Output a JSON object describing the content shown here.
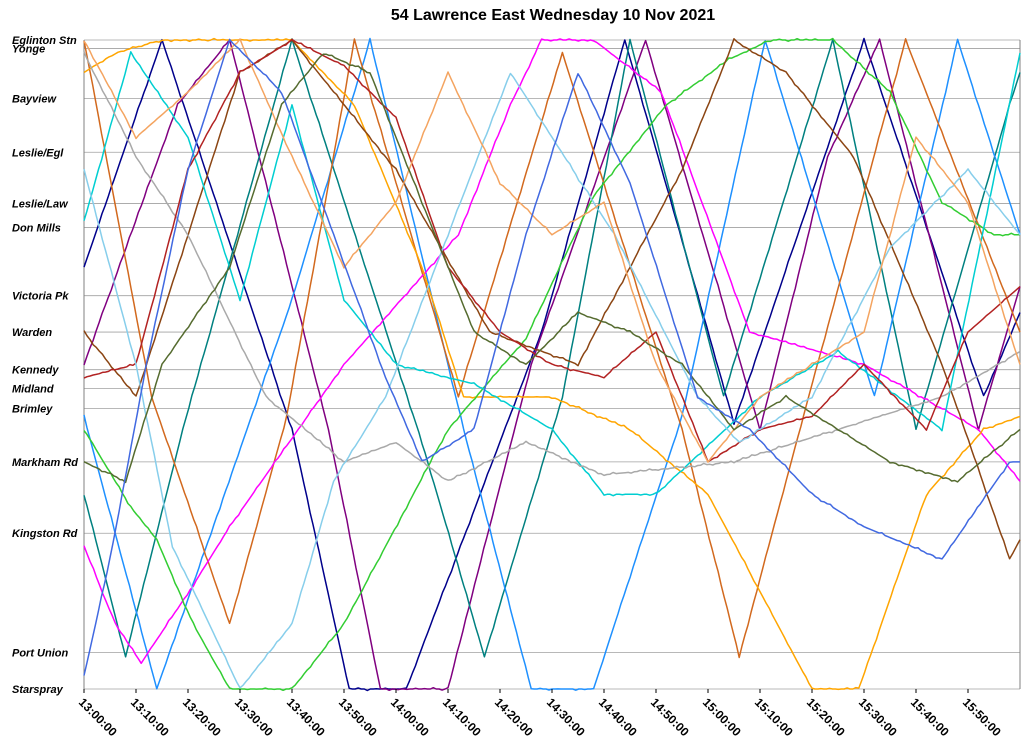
{
  "chart_data": {
    "type": "line",
    "title": "54 Lawrence East Wednesday 10 Nov 2021",
    "xlabel": "",
    "ylabel": "",
    "x_range": [
      "13:00:00",
      "16:00:00"
    ],
    "x_ticks": [
      "13:00:00",
      "13:10:00",
      "13:20:00",
      "13:30:00",
      "13:40:00",
      "13:50:00",
      "14:00:00",
      "14:10:00",
      "14:20:00",
      "14:30:00",
      "14:40:00",
      "14:50:00",
      "15:00:00",
      "15:10:00",
      "15:20:00",
      "15:30:00",
      "15:40:00",
      "15:50:00"
    ],
    "stops": [
      {
        "name": "Eglinton Stn",
        "pos": 0.0
      },
      {
        "name": "Yonge",
        "pos": 0.013
      },
      {
        "name": "Bayview",
        "pos": 0.09
      },
      {
        "name": "Leslie/Egl",
        "pos": 0.173
      },
      {
        "name": "Leslie/Law",
        "pos": 0.252
      },
      {
        "name": "Don Mills",
        "pos": 0.289
      },
      {
        "name": "Victoria Pk",
        "pos": 0.394
      },
      {
        "name": "Warden",
        "pos": 0.45
      },
      {
        "name": "Kennedy",
        "pos": 0.508
      },
      {
        "name": "Midland",
        "pos": 0.537
      },
      {
        "name": "Brimley",
        "pos": 0.568
      },
      {
        "name": "Markham Rd",
        "pos": 0.65
      },
      {
        "name": "Kingston Rd",
        "pos": 0.76
      },
      {
        "name": "Port Union",
        "pos": 0.944
      },
      {
        "name": "Starspray",
        "pos": 1.0
      }
    ],
    "series": [
      {
        "color": "#00008b",
        "points": [
          [
            "13:00:00",
            0.35
          ],
          [
            "13:15:00",
            0.0
          ],
          [
            "13:40:00",
            0.6
          ],
          [
            "13:51:00",
            1.0
          ],
          [
            "14:02:00",
            1.0
          ],
          [
            "14:28:00",
            0.45
          ],
          [
            "14:44:00",
            0.0
          ],
          [
            "15:05:00",
            0.59
          ],
          [
            "15:16:00",
            0.33
          ],
          [
            "15:30:00",
            0.0
          ],
          [
            "15:53:00",
            0.55
          ],
          [
            "16:00:00",
            0.42
          ]
        ]
      },
      {
        "color": "#800080",
        "points": [
          [
            "13:00:00",
            0.5
          ],
          [
            "13:18:00",
            0.1
          ],
          [
            "13:28:00",
            0.0
          ],
          [
            "13:47:00",
            0.6
          ],
          [
            "13:57:00",
            1.0
          ],
          [
            "14:10:00",
            1.0
          ],
          [
            "14:26:00",
            0.5
          ],
          [
            "14:48:00",
            0.0
          ],
          [
            "15:10:00",
            0.6
          ],
          [
            "15:23:00",
            0.18
          ],
          [
            "15:33:00",
            0.0
          ],
          [
            "15:52:00",
            0.6
          ],
          [
            "16:00:00",
            0.38
          ]
        ]
      },
      {
        "color": "#008080",
        "points": [
          [
            "13:00:00",
            0.7
          ],
          [
            "13:08:00",
            0.95
          ],
          [
            "13:19:00",
            0.6
          ],
          [
            "13:40:00",
            0.0
          ],
          [
            "14:05:00",
            0.62
          ],
          [
            "14:17:00",
            0.95
          ],
          [
            "14:32:00",
            0.55
          ],
          [
            "14:45:00",
            0.0
          ],
          [
            "15:03:00",
            0.55
          ],
          [
            "15:24:00",
            0.0
          ],
          [
            "15:40:00",
            0.6
          ],
          [
            "15:58:00",
            0.1
          ],
          [
            "16:00:00",
            0.05
          ]
        ]
      },
      {
        "color": "#1e90ff",
        "points": [
          [
            "13:00:00",
            0.58
          ],
          [
            "13:14:00",
            1.0
          ],
          [
            "13:40:00",
            0.4
          ],
          [
            "13:55:00",
            0.0
          ],
          [
            "14:13:00",
            0.6
          ],
          [
            "14:26:00",
            1.0
          ],
          [
            "14:38:00",
            1.0
          ],
          [
            "14:55:00",
            0.58
          ],
          [
            "15:11:00",
            0.0
          ],
          [
            "15:32:00",
            0.55
          ],
          [
            "15:48:00",
            0.0
          ],
          [
            "16:00:00",
            0.3
          ]
        ]
      },
      {
        "color": "#d2691e",
        "points": [
          [
            "13:00:00",
            0.0
          ],
          [
            "13:13:00",
            0.55
          ],
          [
            "13:28:00",
            0.9
          ],
          [
            "13:39:00",
            0.58
          ],
          [
            "13:52:00",
            0.0
          ],
          [
            "14:12:00",
            0.55
          ],
          [
            "14:32:00",
            0.02
          ],
          [
            "14:55:00",
            0.6
          ],
          [
            "15:06:00",
            0.95
          ],
          [
            "15:19:00",
            0.56
          ],
          [
            "15:38:00",
            0.0
          ],
          [
            "16:00:00",
            0.45
          ]
        ]
      },
      {
        "color": "#ff00ff",
        "points": [
          [
            "13:00:00",
            0.78
          ],
          [
            "13:06:00",
            0.9
          ],
          [
            "13:11:00",
            0.96
          ],
          [
            "13:21:00",
            0.84
          ],
          [
            "13:28:00",
            0.75
          ],
          [
            "13:50:00",
            0.5
          ],
          [
            "14:12:00",
            0.3
          ],
          [
            "14:22:00",
            0.1
          ],
          [
            "14:28:00",
            0.0
          ],
          [
            "14:38:00",
            0.0
          ],
          [
            "14:51:00",
            0.08
          ],
          [
            "15:08:00",
            0.45
          ],
          [
            "15:30:00",
            0.5
          ],
          [
            "15:52:00",
            0.6
          ],
          [
            "16:00:00",
            0.68
          ]
        ]
      },
      {
        "color": "#ffa500",
        "points": [
          [
            "13:00:00",
            0.05
          ],
          [
            "13:06:00",
            0.02
          ],
          [
            "13:15:00",
            0.0
          ],
          [
            "13:25:00",
            0.0
          ],
          [
            "13:40:00",
            0.0
          ],
          [
            "13:52:00",
            0.1
          ],
          [
            "14:05:00",
            0.35
          ],
          [
            "14:13:00",
            0.55
          ],
          [
            "14:30:00",
            0.55
          ],
          [
            "14:45:00",
            0.6
          ],
          [
            "15:00:00",
            0.7
          ],
          [
            "15:10:00",
            0.85
          ],
          [
            "15:20:00",
            1.0
          ],
          [
            "15:29:00",
            1.0
          ],
          [
            "15:42:00",
            0.7
          ],
          [
            "15:53:00",
            0.6
          ],
          [
            "16:00:00",
            0.58
          ]
        ]
      },
      {
        "color": "#32cd32",
        "points": [
          [
            "13:00:00",
            0.6
          ],
          [
            "13:09:00",
            0.72
          ],
          [
            "13:14:00",
            0.77
          ],
          [
            "13:21:00",
            0.9
          ],
          [
            "13:28:00",
            1.0
          ],
          [
            "13:40:00",
            1.0
          ],
          [
            "13:50:00",
            0.9
          ],
          [
            "14:10:00",
            0.6
          ],
          [
            "14:25:00",
            0.46
          ],
          [
            "14:38:00",
            0.24
          ],
          [
            "14:52:00",
            0.1
          ],
          [
            "15:04:00",
            0.03
          ],
          [
            "15:12:00",
            0.0
          ],
          [
            "15:24:00",
            0.0
          ],
          [
            "15:35:00",
            0.08
          ],
          [
            "15:45:00",
            0.25
          ],
          [
            "15:55:00",
            0.3
          ],
          [
            "16:00:00",
            0.3
          ]
        ]
      },
      {
        "color": "#8b4513",
        "points": [
          [
            "13:00:00",
            0.45
          ],
          [
            "13:10:00",
            0.55
          ],
          [
            "13:20:00",
            0.3
          ],
          [
            "13:30:00",
            0.05
          ],
          [
            "13:40:00",
            0.0
          ],
          [
            "14:00:00",
            0.2
          ],
          [
            "14:18:00",
            0.45
          ],
          [
            "14:35:00",
            0.5
          ],
          [
            "14:55:00",
            0.2
          ],
          [
            "15:05:00",
            0.0
          ],
          [
            "15:15:00",
            0.05
          ],
          [
            "15:28:00",
            0.18
          ],
          [
            "15:45:00",
            0.5
          ],
          [
            "15:58:00",
            0.8
          ],
          [
            "16:00:00",
            0.77
          ]
        ]
      },
      {
        "color": "#00ced1",
        "points": [
          [
            "13:00:00",
            0.28
          ],
          [
            "13:09:00",
            0.02
          ],
          [
            "13:20:00",
            0.15
          ],
          [
            "13:30:00",
            0.4
          ],
          [
            "13:40:00",
            0.1
          ],
          [
            "13:50:00",
            0.4
          ],
          [
            "14:00:00",
            0.5
          ],
          [
            "14:15:00",
            0.53
          ],
          [
            "14:30:00",
            0.6
          ],
          [
            "14:40:00",
            0.7
          ],
          [
            "14:50:00",
            0.7
          ],
          [
            "15:10:00",
            0.55
          ],
          [
            "15:25:00",
            0.48
          ],
          [
            "15:45:00",
            0.6
          ],
          [
            "16:00:00",
            0.02
          ]
        ]
      },
      {
        "color": "#a9a9a9",
        "points": [
          [
            "13:00:00",
            0.02
          ],
          [
            "13:10:00",
            0.18
          ],
          [
            "13:20:00",
            0.3
          ],
          [
            "13:35:00",
            0.55
          ],
          [
            "13:50:00",
            0.65
          ],
          [
            "14:00:00",
            0.62
          ],
          [
            "14:10:00",
            0.68
          ],
          [
            "14:25:00",
            0.62
          ],
          [
            "14:40:00",
            0.67
          ],
          [
            "15:05:00",
            0.65
          ],
          [
            "15:25:00",
            0.6
          ],
          [
            "15:45:00",
            0.55
          ],
          [
            "16:00:00",
            0.48
          ]
        ]
      },
      {
        "color": "#b22222",
        "points": [
          [
            "13:00:00",
            0.52
          ],
          [
            "13:10:00",
            0.5
          ],
          [
            "13:20:00",
            0.2
          ],
          [
            "13:30:00",
            0.05
          ],
          [
            "13:40:00",
            0.0
          ],
          [
            "13:50:00",
            0.04
          ],
          [
            "14:00:00",
            0.12
          ],
          [
            "14:10:00",
            0.35
          ],
          [
            "14:20:00",
            0.45
          ],
          [
            "14:30:00",
            0.5
          ],
          [
            "14:40:00",
            0.52
          ],
          [
            "14:50:00",
            0.45
          ],
          [
            "15:00:00",
            0.65
          ],
          [
            "15:10:00",
            0.6
          ],
          [
            "15:20:00",
            0.58
          ],
          [
            "15:30:00",
            0.5
          ],
          [
            "15:42:00",
            0.6
          ],
          [
            "15:50:00",
            0.45
          ],
          [
            "16:00:00",
            0.38
          ]
        ]
      },
      {
        "color": "#87ceeb",
        "points": [
          [
            "13:00:00",
            0.2
          ],
          [
            "13:10:00",
            0.5
          ],
          [
            "13:17:00",
            0.78
          ],
          [
            "13:30:00",
            1.0
          ],
          [
            "13:40:00",
            0.9
          ],
          [
            "13:48:00",
            0.68
          ],
          [
            "13:58:00",
            0.55
          ],
          [
            "14:10:00",
            0.3
          ],
          [
            "14:22:00",
            0.05
          ],
          [
            "14:30:00",
            0.15
          ],
          [
            "14:42:00",
            0.3
          ],
          [
            "14:58:00",
            0.55
          ],
          [
            "15:06:00",
            0.62
          ],
          [
            "15:20:00",
            0.55
          ],
          [
            "15:35:00",
            0.32
          ],
          [
            "15:50:00",
            0.2
          ],
          [
            "16:00:00",
            0.3
          ]
        ]
      },
      {
        "color": "#f4a460",
        "points": [
          [
            "13:00:00",
            0.0
          ],
          [
            "13:10:00",
            0.15
          ],
          [
            "13:20:00",
            0.08
          ],
          [
            "13:30:00",
            0.0
          ],
          [
            "13:40:00",
            0.18
          ],
          [
            "13:50:00",
            0.35
          ],
          [
            "14:00:00",
            0.25
          ],
          [
            "14:10:00",
            0.05
          ],
          [
            "14:20:00",
            0.22
          ],
          [
            "14:30:00",
            0.3
          ],
          [
            "14:40:00",
            0.25
          ],
          [
            "14:50:00",
            0.5
          ],
          [
            "15:00:00",
            0.65
          ],
          [
            "15:10:00",
            0.55
          ],
          [
            "15:20:00",
            0.5
          ],
          [
            "15:30:00",
            0.45
          ],
          [
            "15:40:00",
            0.15
          ],
          [
            "15:50:00",
            0.25
          ],
          [
            "16:00:00",
            0.5
          ]
        ]
      },
      {
        "color": "#556b2f",
        "points": [
          [
            "13:00:00",
            0.65
          ],
          [
            "13:08:00",
            0.68
          ],
          [
            "13:15:00",
            0.5
          ],
          [
            "13:28:00",
            0.35
          ],
          [
            "13:38:00",
            0.1
          ],
          [
            "13:46:00",
            0.02
          ],
          [
            "13:55:00",
            0.05
          ],
          [
            "14:05:00",
            0.25
          ],
          [
            "14:15:00",
            0.45
          ],
          [
            "14:25:00",
            0.5
          ],
          [
            "14:35:00",
            0.42
          ],
          [
            "14:45:00",
            0.45
          ],
          [
            "14:55:00",
            0.5
          ],
          [
            "15:05:00",
            0.6
          ],
          [
            "15:15:00",
            0.55
          ],
          [
            "15:25:00",
            0.6
          ],
          [
            "15:35:00",
            0.65
          ],
          [
            "15:48:00",
            0.68
          ],
          [
            "16:00:00",
            0.6
          ]
        ]
      },
      {
        "color": "#4169e1",
        "points": [
          [
            "13:00:00",
            0.98
          ],
          [
            "13:05:00",
            0.8
          ],
          [
            "13:12:00",
            0.5
          ],
          [
            "13:20:00",
            0.2
          ],
          [
            "13:28:00",
            0.0
          ],
          [
            "13:38:00",
            0.08
          ],
          [
            "13:48:00",
            0.3
          ],
          [
            "13:58:00",
            0.52
          ],
          [
            "14:05:00",
            0.65
          ],
          [
            "14:15:00",
            0.6
          ],
          [
            "14:25:00",
            0.3
          ],
          [
            "14:35:00",
            0.05
          ],
          [
            "14:45:00",
            0.22
          ],
          [
            "14:58:00",
            0.55
          ],
          [
            "15:08:00",
            0.6
          ],
          [
            "15:20:00",
            0.7
          ],
          [
            "15:30:00",
            0.75
          ],
          [
            "15:45:00",
            0.8
          ],
          [
            "15:58:00",
            0.65
          ],
          [
            "16:00:00",
            0.65
          ]
        ]
      }
    ]
  }
}
